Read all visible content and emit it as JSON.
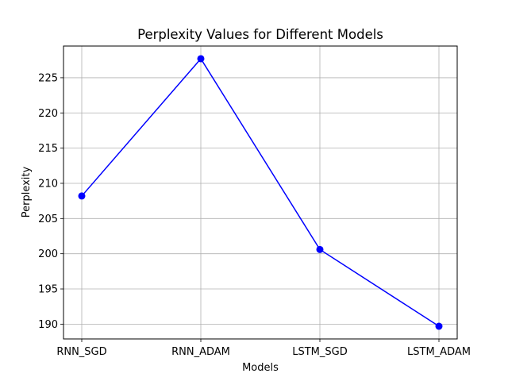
{
  "chart_data": {
    "type": "line",
    "title": "Perplexity Values for Different Models",
    "xlabel": "Models",
    "ylabel": "Perplexity",
    "categories": [
      "RNN_SGD",
      "RNN_ADAM",
      "LSTM_SGD",
      "LSTM_ADAM"
    ],
    "values": [
      208.2,
      227.7,
      200.6,
      189.7
    ],
    "ylim": [
      187.9,
      229.5
    ],
    "yticks": [
      190,
      195,
      200,
      205,
      210,
      215,
      220,
      225
    ],
    "grid": true,
    "marker": "circle",
    "line_color": "#0000ff"
  }
}
